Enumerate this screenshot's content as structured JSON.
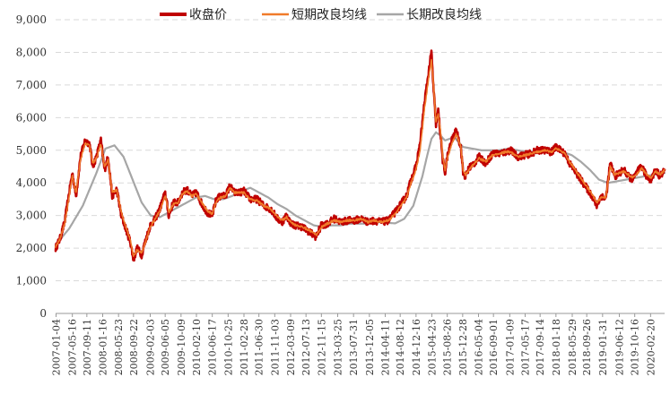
{
  "chart_data": {
    "type": "line",
    "title": "",
    "xlabel": "",
    "ylabel": "",
    "ylim": [
      0,
      9000
    ],
    "y_ticks": [
      "0",
      "1,000",
      "2,000",
      "3,000",
      "4,000",
      "5,000",
      "6,000",
      "7,000",
      "8,000",
      "9,000"
    ],
    "y_tick_values": [
      0,
      1000,
      2000,
      3000,
      4000,
      5000,
      6000,
      7000,
      8000,
      9000
    ],
    "grid": true,
    "legend_position": "top",
    "x_tick_labels": [
      "2007-01-04",
      "2007-05-16",
      "2007-09-11",
      "2008-01-16",
      "2008-05-23",
      "2008-09-22",
      "2009-02-03",
      "2009-06-05",
      "2009-10-09",
      "2010-02-10",
      "2010-06-17",
      "2010-10-25",
      "2011-02-28",
      "2011-06-30",
      "2011-11-03",
      "2012-03-09",
      "2012-07-13",
      "2012-11-15",
      "2013-03-25",
      "2013-07-31",
      "2013-12-05",
      "2014-04-11",
      "2014-08-12",
      "2014-12-16",
      "2015-04-23",
      "2015-08-26",
      "2015-12-28",
      "2016-05-04",
      "2016-09-01",
      "2017-01-09",
      "2017-05-17",
      "2017-09-14",
      "2018-01-18",
      "2018-05-29",
      "2018-09-26",
      "2019-01-31",
      "2019-06-12",
      "2019-10-16",
      "2020-02-20"
    ],
    "x_tick_dates": [
      2007.01,
      2007.37,
      2007.69,
      2008.04,
      2008.39,
      2008.72,
      2009.09,
      2009.42,
      2009.77,
      2010.11,
      2010.46,
      2010.81,
      2011.16,
      2011.49,
      2011.84,
      2012.19,
      2012.53,
      2012.87,
      2013.23,
      2013.58,
      2013.93,
      2014.28,
      2014.61,
      2014.96,
      2015.31,
      2015.65,
      2015.99,
      2016.34,
      2016.67,
      2017.03,
      2017.37,
      2017.7,
      2018.05,
      2018.41,
      2018.73,
      2019.08,
      2019.45,
      2019.79,
      2020.14
    ],
    "series": [
      {
        "name": "收盘价",
        "color": "#c00000",
        "width": 2.6,
        "noise": 110,
        "x": [
          2007.0,
          2007.1,
          2007.2,
          2007.3,
          2007.37,
          2007.45,
          2007.55,
          2007.65,
          2007.75,
          2007.82,
          2007.9,
          2008.0,
          2008.08,
          2008.16,
          2008.25,
          2008.35,
          2008.45,
          2008.55,
          2008.65,
          2008.72,
          2008.8,
          2008.9,
          2009.0,
          2009.09,
          2009.2,
          2009.3,
          2009.42,
          2009.5,
          2009.6,
          2009.7,
          2009.8,
          2009.9,
          2010.0,
          2010.11,
          2010.25,
          2010.35,
          2010.46,
          2010.55,
          2010.65,
          2010.75,
          2010.85,
          2010.95,
          2011.05,
          2011.16,
          2011.3,
          2011.45,
          2011.6,
          2011.75,
          2011.9,
          2012.0,
          2012.1,
          2012.2,
          2012.3,
          2012.45,
          2012.6,
          2012.75,
          2012.87,
          2013.0,
          2013.15,
          2013.3,
          2013.45,
          2013.6,
          2013.75,
          2013.9,
          2014.05,
          2014.2,
          2014.35,
          2014.5,
          2014.6,
          2014.75,
          2014.85,
          2014.96,
          2015.05,
          2015.15,
          2015.25,
          2015.3,
          2015.35,
          2015.4,
          2015.45,
          2015.5,
          2015.55,
          2015.6,
          2015.65,
          2015.75,
          2015.85,
          2015.95,
          2016.0,
          2016.05,
          2016.15,
          2016.25,
          2016.35,
          2016.5,
          2016.65,
          2016.8,
          2016.95,
          2017.05,
          2017.2,
          2017.35,
          2017.5,
          2017.65,
          2017.8,
          2017.95,
          2018.05,
          2018.15,
          2018.25,
          2018.35,
          2018.45,
          2018.55,
          2018.65,
          2018.75,
          2018.85,
          2018.95,
          2019.05,
          2019.15,
          2019.25,
          2019.35,
          2019.45,
          2019.55,
          2019.65,
          2019.75,
          2019.85,
          2019.95,
          2020.05,
          2020.15,
          2020.25,
          2020.35,
          2020.45
        ],
        "y": [
          2000,
          2300,
          2800,
          3700,
          4300,
          3600,
          4800,
          5300,
          5200,
          4500,
          4800,
          5300,
          4400,
          4800,
          3600,
          3800,
          3000,
          2600,
          2200,
          1650,
          2000,
          1800,
          2300,
          2700,
          2900,
          3200,
          3700,
          3000,
          3400,
          3400,
          3700,
          3800,
          3600,
          3700,
          3300,
          3100,
          3000,
          3500,
          3600,
          3600,
          3900,
          3700,
          3700,
          3750,
          3500,
          3500,
          3300,
          3200,
          2900,
          2800,
          3000,
          2750,
          2700,
          2650,
          2500,
          2350,
          2700,
          2750,
          2900,
          2800,
          2850,
          2850,
          2900,
          2800,
          2850,
          2800,
          2850,
          3100,
          3300,
          3600,
          4100,
          4500,
          5200,
          6500,
          7500,
          8000,
          6800,
          5800,
          6200,
          5500,
          4700,
          4300,
          4800,
          5300,
          5600,
          5100,
          4300,
          4200,
          4500,
          4600,
          4800,
          4600,
          4900,
          4900,
          4950,
          5000,
          4800,
          4850,
          4900,
          5000,
          5000,
          4950,
          5100,
          5000,
          4900,
          4600,
          4400,
          4200,
          4000,
          3800,
          3600,
          3300,
          3600,
          3500,
          4600,
          4200,
          4300,
          4400,
          4200,
          4100,
          4350,
          4500,
          4200,
          4100,
          4400,
          4200,
          4400
        ]
      },
      {
        "name": "短期改良均线",
        "color": "#f07b2a",
        "width": 1.5,
        "noise": 35,
        "x": [
          2007.0,
          2007.1,
          2007.2,
          2007.3,
          2007.37,
          2007.45,
          2007.55,
          2007.65,
          2007.75,
          2007.82,
          2007.9,
          2008.0,
          2008.08,
          2008.16,
          2008.25,
          2008.35,
          2008.45,
          2008.55,
          2008.65,
          2008.72,
          2008.8,
          2008.9,
          2009.0,
          2009.09,
          2009.2,
          2009.3,
          2009.42,
          2009.5,
          2009.6,
          2009.7,
          2009.8,
          2009.9,
          2010.0,
          2010.11,
          2010.25,
          2010.35,
          2010.46,
          2010.55,
          2010.65,
          2010.75,
          2010.85,
          2010.95,
          2011.05,
          2011.16,
          2011.3,
          2011.45,
          2011.6,
          2011.75,
          2011.9,
          2012.0,
          2012.1,
          2012.2,
          2012.3,
          2012.45,
          2012.6,
          2012.75,
          2012.87,
          2013.0,
          2013.15,
          2013.3,
          2013.45,
          2013.6,
          2013.75,
          2013.9,
          2014.05,
          2014.2,
          2014.35,
          2014.5,
          2014.6,
          2014.75,
          2014.85,
          2014.96,
          2015.05,
          2015.15,
          2015.25,
          2015.3,
          2015.35,
          2015.4,
          2015.45,
          2015.5,
          2015.55,
          2015.6,
          2015.65,
          2015.75,
          2015.85,
          2015.95,
          2016.0,
          2016.05,
          2016.15,
          2016.25,
          2016.35,
          2016.5,
          2016.65,
          2016.8,
          2016.95,
          2017.05,
          2017.2,
          2017.35,
          2017.5,
          2017.65,
          2017.8,
          2017.95,
          2018.05,
          2018.15,
          2018.25,
          2018.35,
          2018.45,
          2018.55,
          2018.65,
          2018.75,
          2018.85,
          2018.95,
          2019.05,
          2019.15,
          2019.25,
          2019.35,
          2019.45,
          2019.55,
          2019.65,
          2019.75,
          2019.85,
          2019.95,
          2020.05,
          2020.15,
          2020.25,
          2020.35,
          2020.45
        ],
        "y": [
          2050,
          2300,
          2750,
          3600,
          4200,
          3700,
          4700,
          5200,
          5150,
          4600,
          4750,
          5200,
          4500,
          4700,
          3700,
          3800,
          3100,
          2650,
          2250,
          1750,
          1950,
          1850,
          2250,
          2650,
          2900,
          3150,
          3600,
          3100,
          3350,
          3400,
          3650,
          3750,
          3600,
          3650,
          3350,
          3150,
          3050,
          3450,
          3550,
          3600,
          3850,
          3700,
          3700,
          3700,
          3500,
          3450,
          3300,
          3200,
          2950,
          2850,
          2950,
          2800,
          2700,
          2650,
          2550,
          2400,
          2650,
          2750,
          2850,
          2800,
          2850,
          2850,
          2900,
          2800,
          2850,
          2800,
          2850,
          3050,
          3250,
          3550,
          4000,
          4400,
          5000,
          6300,
          7300,
          7800,
          6900,
          5900,
          6100,
          5600,
          4800,
          4400,
          4750,
          5200,
          5500,
          5100,
          4400,
          4250,
          4450,
          4600,
          4750,
          4650,
          4850,
          4900,
          4950,
          4950,
          4800,
          4850,
          4900,
          4950,
          5000,
          4950,
          5050,
          5000,
          4900,
          4650,
          4450,
          4250,
          4050,
          3850,
          3650,
          3400,
          3550,
          3550,
          4500,
          4250,
          4300,
          4350,
          4250,
          4150,
          4300,
          4450,
          4250,
          4150,
          4350,
          4250,
          4400
        ]
      },
      {
        "name": "长期改良均线",
        "color": "#a6a6a6",
        "width": 2.2,
        "noise": 0,
        "x": [
          2007.0,
          2007.3,
          2007.6,
          2007.9,
          2008.1,
          2008.3,
          2008.5,
          2008.7,
          2008.9,
          2009.1,
          2009.3,
          2009.5,
          2009.7,
          2009.9,
          2010.1,
          2010.3,
          2010.5,
          2010.7,
          2010.9,
          2011.1,
          2011.3,
          2011.5,
          2011.7,
          2011.9,
          2012.1,
          2012.3,
          2012.5,
          2012.7,
          2012.9,
          2013.1,
          2013.3,
          2013.5,
          2013.7,
          2013.9,
          2014.1,
          2014.3,
          2014.5,
          2014.7,
          2014.9,
          2015.1,
          2015.2,
          2015.3,
          2015.4,
          2015.5,
          2015.6,
          2015.8,
          2016.0,
          2016.2,
          2016.4,
          2016.6,
          2016.8,
          2017.0,
          2017.2,
          2017.4,
          2017.6,
          2017.8,
          2018.0,
          2018.2,
          2018.4,
          2018.6,
          2018.8,
          2019.0,
          2019.2,
          2019.4,
          2019.6,
          2019.8,
          2020.0,
          2020.2,
          2020.45
        ],
        "y": [
          2100,
          2600,
          3300,
          4300,
          5050,
          5150,
          4800,
          4100,
          3400,
          3000,
          2950,
          3100,
          3250,
          3400,
          3550,
          3600,
          3500,
          3500,
          3600,
          3750,
          3850,
          3700,
          3550,
          3350,
          3200,
          3000,
          2850,
          2700,
          2650,
          2700,
          2700,
          2750,
          2750,
          2750,
          2800,
          2780,
          2760,
          2900,
          3300,
          4200,
          4800,
          5350,
          5550,
          5450,
          5300,
          5400,
          5100,
          5050,
          5000,
          5000,
          5000,
          5050,
          5000,
          4950,
          4950,
          5000,
          5050,
          4950,
          4850,
          4650,
          4400,
          4100,
          4000,
          4050,
          4100,
          4150,
          4200,
          4250,
          4300
        ]
      }
    ]
  }
}
